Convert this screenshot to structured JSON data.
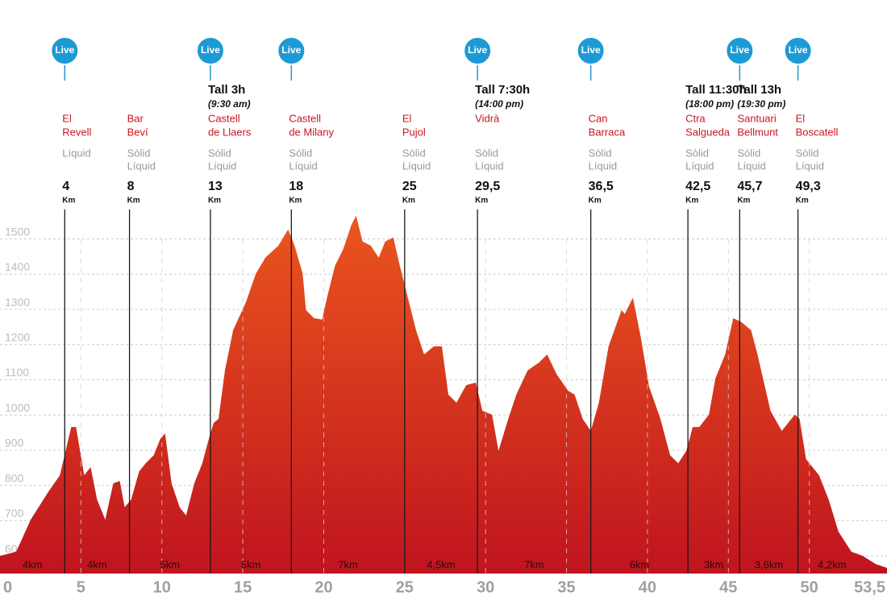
{
  "chart_data": {
    "type": "area",
    "color_top": "#ea561d",
    "color_bottom": "#c0141f",
    "live_color": "#1d9ad6",
    "name_color": "#c8161f",
    "xlim": [
      0,
      54.8
    ],
    "ylim": [
      550,
      1570
    ],
    "xticks": [
      0,
      5,
      10,
      15,
      20,
      25,
      30,
      35,
      40,
      45,
      50,
      {
        "value": 53.5,
        "label": "53,5"
      }
    ],
    "yticks": [
      600,
      700,
      800,
      900,
      1000,
      1100,
      1200,
      1300,
      1400,
      1500
    ],
    "grid": true,
    "x": [
      0,
      1.0,
      1.9,
      3.0,
      3.7,
      4.4,
      4.7,
      5.2,
      5.6,
      6.0,
      6.5,
      7.0,
      7.4,
      7.7,
      8.1,
      8.6,
      9.0,
      9.5,
      9.9,
      10.2,
      10.6,
      11.1,
      11.5,
      12.0,
      12.5,
      12.9,
      13.2,
      13.5,
      13.9,
      14.4,
      15.2,
      15.8,
      16.4,
      17.2,
      17.8,
      18.2,
      18.7,
      18.9,
      19.4,
      19.9,
      20.2,
      20.7,
      21.2,
      21.7,
      22.0,
      22.4,
      22.9,
      23.4,
      23.8,
      24.3,
      24.7,
      25.2,
      25.7,
      26.2,
      26.8,
      27.3,
      27.7,
      28.2,
      28.8,
      29.4,
      29.8,
      30.4,
      30.8,
      31.4,
      31.9,
      32.6,
      33.3,
      33.8,
      34.4,
      35.1,
      35.5,
      36.0,
      36.5,
      37.0,
      37.6,
      38.4,
      38.6,
      39.1,
      39.6,
      40.1,
      40.8,
      41.4,
      41.9,
      42.4,
      42.8,
      43.2,
      43.8,
      44.2,
      44.8,
      45.3,
      45.8,
      46.4,
      46.8,
      47.6,
      48.3,
      49.1,
      49.4,
      49.8,
      50.6,
      51.2,
      51.8,
      52.6,
      53.3,
      54.1,
      54.8
    ],
    "values": [
      600,
      612,
      703,
      783,
      829,
      966,
      966,
      829,
      852,
      760,
      703,
      806,
      813,
      738,
      760,
      840,
      863,
      886,
      932,
      948,
      806,
      738,
      715,
      806,
      863,
      932,
      978,
      989,
      1127,
      1241,
      1321,
      1401,
      1447,
      1481,
      1527,
      1481,
      1401,
      1298,
      1275,
      1271,
      1333,
      1424,
      1470,
      1539,
      1566,
      1493,
      1481,
      1447,
      1493,
      1504,
      1424,
      1333,
      1241,
      1172,
      1195,
      1195,
      1058,
      1035,
      1085,
      1092,
      1012,
      1001,
      898,
      989,
      1058,
      1127,
      1149,
      1172,
      1115,
      1069,
      1058,
      989,
      955,
      1035,
      1195,
      1298,
      1287,
      1333,
      1218,
      1081,
      989,
      886,
      863,
      898,
      966,
      966,
      1001,
      1104,
      1172,
      1275,
      1264,
      1241,
      1172,
      1012,
      955,
      1001,
      989,
      875,
      829,
      760,
      669,
      612,
      600,
      577,
      566
    ],
    "live_label": "Live",
    "km_unit": "Km",
    "stations": [
      {
        "name": [
          "El",
          "Revell"
        ],
        "supplies": [
          "Líquid"
        ],
        "km": 4,
        "live": true
      },
      {
        "name": [
          "Bar",
          "Beví"
        ],
        "supplies": [
          "Sòlid",
          "Líquid"
        ],
        "km": 8,
        "live": false
      },
      {
        "cutoff": "Tall 3h",
        "cutoff_time": "(9:30 am)",
        "name": [
          "Castell",
          "de Llaers"
        ],
        "supplies": [
          "Sòlid",
          "Líquid"
        ],
        "km": 13,
        "live": true
      },
      {
        "name": [
          "Castell",
          "de Milany"
        ],
        "supplies": [
          "Sòlid",
          "Líquid"
        ],
        "km": 18,
        "live": true
      },
      {
        "name": [
          "El",
          "Pujol"
        ],
        "supplies": [
          "Sòlid",
          "Líquid"
        ],
        "km": 25,
        "live": false
      },
      {
        "cutoff": "Tall 7:30h",
        "cutoff_time": "(14:00 pm)",
        "name": [
          "Vidrà"
        ],
        "supplies": [
          "Sòlid",
          "Líquid"
        ],
        "km": {
          "value": 29.5,
          "label": "29,5"
        },
        "live": true
      },
      {
        "name": [
          "Can",
          "Barraca"
        ],
        "supplies": [
          "Sòlid",
          "Líquid"
        ],
        "km": {
          "value": 36.5,
          "label": "36,5"
        },
        "live": true
      },
      {
        "cutoff": "Tall 11:30h",
        "cutoff_time": "(18:00 pm)",
        "name": [
          "Ctra",
          "Salgueda"
        ],
        "supplies": [
          "Sòlid",
          "Líquid"
        ],
        "km": {
          "value": 42.5,
          "label": "42,5"
        },
        "live": false
      },
      {
        "cutoff": "Tall 13h",
        "cutoff_time": "(19:30 pm)",
        "name": [
          "Santuari",
          "Bellmunt"
        ],
        "supplies": [
          "Sòlid",
          "Líquid"
        ],
        "km": {
          "value": 45.7,
          "label": "45,7"
        },
        "live": true
      },
      {
        "name": [
          "El",
          "Boscatell"
        ],
        "supplies": [
          "Sòlid",
          "Líquid"
        ],
        "km": {
          "value": 49.3,
          "label": "49,3"
        },
        "live": true
      }
    ],
    "segments": [
      "4km",
      "4km",
      "5km",
      "5km",
      "7km",
      "4,5km",
      "7km",
      "6km",
      "3km",
      "3,6km",
      "4,2km"
    ]
  }
}
